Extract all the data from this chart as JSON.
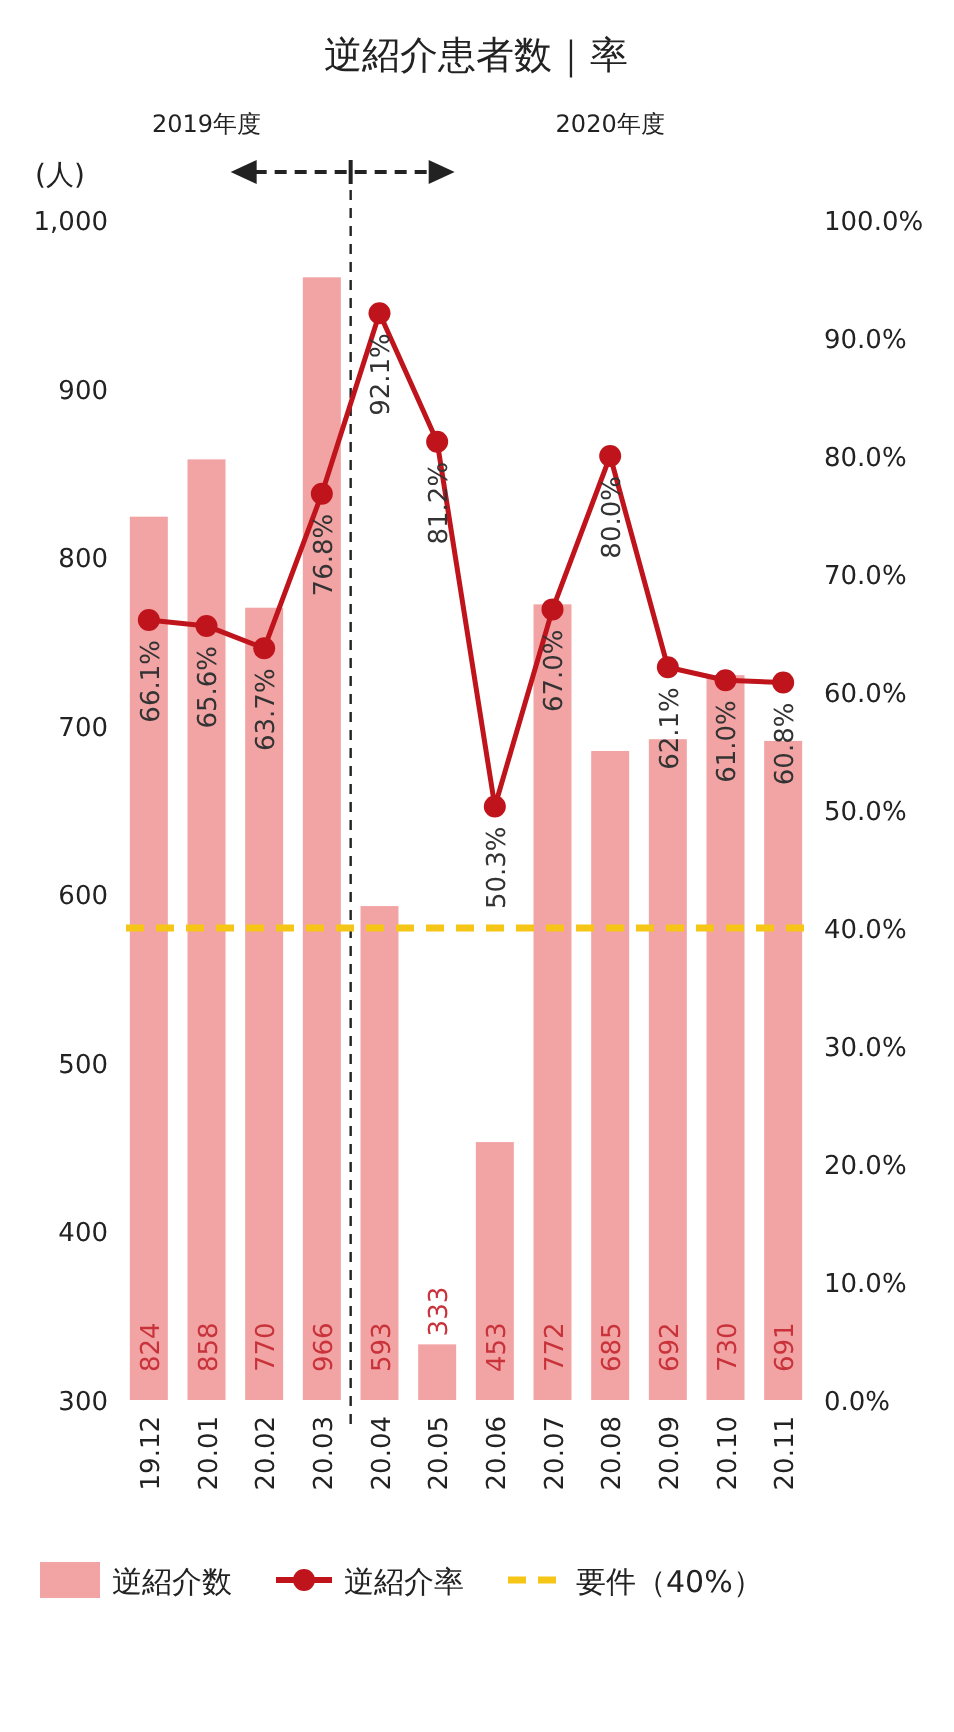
{
  "chart_data": {
    "type": "bar",
    "title": "逆紹介患者数｜率",
    "ylabel": "(人)",
    "categories": [
      "19.12",
      "20.01",
      "20.02",
      "20.03",
      "20.04",
      "20.05",
      "20.06",
      "20.07",
      "20.08",
      "20.09",
      "20.10",
      "20.11"
    ],
    "series": [
      {
        "name": "逆紹介数",
        "type": "bar",
        "color": "#f2a3a3",
        "values": [
          824,
          858,
          770,
          966,
          593,
          333,
          453,
          772,
          685,
          692,
          730,
          691
        ],
        "value_labels": [
          "824",
          "858",
          "770",
          "966",
          "593",
          "333",
          "453",
          "772",
          "685",
          "692",
          "730",
          "691"
        ]
      },
      {
        "name": "逆紹介率",
        "type": "line",
        "axis": "y2",
        "color": "#c0141c",
        "values": [
          66.1,
          65.6,
          63.7,
          76.8,
          92.1,
          81.2,
          50.3,
          67.0,
          80.0,
          62.1,
          61.0,
          60.8
        ],
        "value_labels": [
          "66.1%",
          "65.6%",
          "63.7%",
          "76.8%",
          "92.1%",
          "81.2%",
          "50.3%",
          "67.0%",
          "80.0%",
          "62.1%",
          "61.0%",
          "60.8%"
        ]
      }
    ],
    "ylim": [
      300,
      1000
    ],
    "yticks": [
      300,
      400,
      500,
      600,
      700,
      800,
      900,
      {
        "value": 1000,
        "label": "1,000"
      }
    ],
    "y2lim": [
      0,
      100
    ],
    "y2ticks": [
      {
        "value": 0,
        "label": "0.0%"
      },
      {
        "value": 10,
        "label": "10.0%"
      },
      {
        "value": 20,
        "label": "20.0%"
      },
      {
        "value": 30,
        "label": "30.0%"
      },
      {
        "value": 40,
        "label": "40.0%"
      },
      {
        "value": 50,
        "label": "50.0%"
      },
      {
        "value": 60,
        "label": "60.0%"
      },
      {
        "value": 70,
        "label": "70.0%"
      },
      {
        "value": 80,
        "label": "80.0%"
      },
      {
        "value": 90,
        "label": "90.0%"
      },
      {
        "value": 100,
        "label": "100.0%"
      }
    ],
    "ref_lines": [
      {
        "axis": "y2",
        "value": 40,
        "label": "要件（40%）",
        "color": "#f5c518",
        "line_style": "dashed"
      }
    ],
    "annotations": [
      "2019年度",
      "2020年度"
    ],
    "marker": "circle",
    "legend": "bottom",
    "grid": false
  }
}
